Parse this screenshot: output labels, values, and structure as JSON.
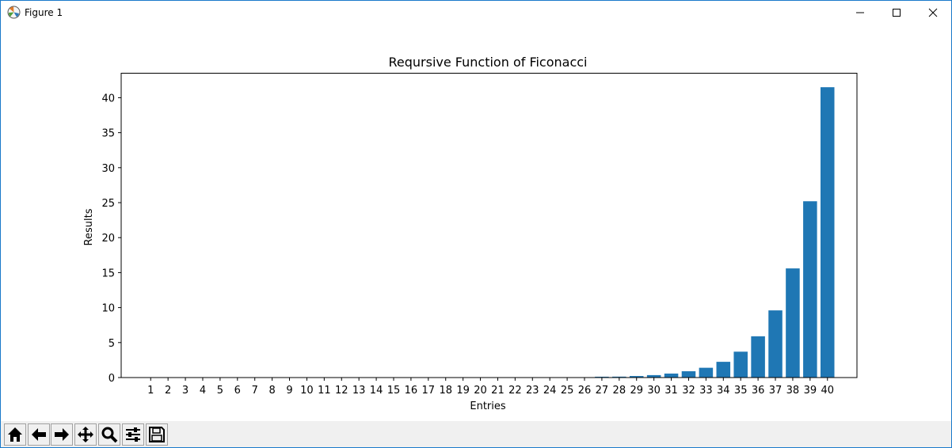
{
  "window": {
    "title": "Figure 1"
  },
  "toolbar": {
    "buttons": [
      "home-icon",
      "back-arrow-icon",
      "forward-arrow-icon",
      "pan-icon",
      "zoom-icon",
      "configure-subplots-icon",
      "save-icon"
    ]
  },
  "chart_data": {
    "type": "bar",
    "title": "Reqursive Function of Ficonacci",
    "xlabel": "Entries",
    "ylabel": "Results",
    "bar_color": "#1f77b4",
    "categories": [
      "1",
      "2",
      "3",
      "4",
      "5",
      "6",
      "7",
      "8",
      "9",
      "10",
      "11",
      "12",
      "13",
      "14",
      "15",
      "16",
      "17",
      "18",
      "19",
      "20",
      "21",
      "22",
      "23",
      "24",
      "25",
      "26",
      "27",
      "28",
      "29",
      "30",
      "31",
      "32",
      "33",
      "34",
      "35",
      "36",
      "37",
      "38",
      "39",
      "40"
    ],
    "values": [
      0.0,
      0.0,
      0.0,
      0.0,
      0.0,
      0.0,
      0.0,
      0.0,
      0.0,
      0.0,
      0.0,
      0.0,
      0.0,
      0.0,
      0.0,
      0.0,
      0.0,
      0.0,
      0.0,
      0.0,
      0.0,
      0.0,
      0.0,
      0.0,
      0.0,
      0.0,
      0.12,
      0.13,
      0.22,
      0.35,
      0.57,
      0.9,
      1.4,
      2.25,
      3.7,
      5.9,
      9.6,
      15.6,
      25.2,
      41.5
    ],
    "ylim": [
      0,
      43.5
    ],
    "yticks": [
      0,
      5,
      10,
      15,
      20,
      25,
      30,
      35,
      40
    ],
    "grid": false
  }
}
